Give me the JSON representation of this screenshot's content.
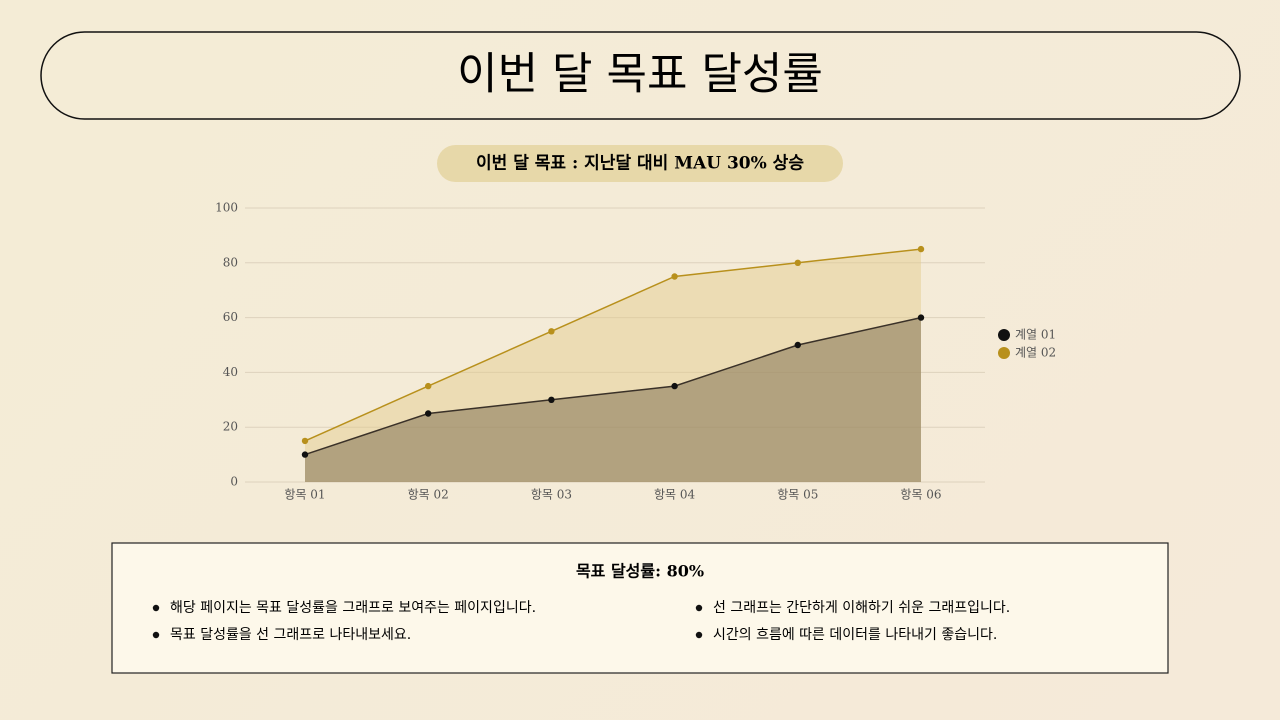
{
  "title": "이번 달 목표 달성률",
  "badge": "이번 달 목표 : 지난달 대비 MAU 30% 상승",
  "chart_data": {
    "type": "area",
    "categories": [
      "항목 01",
      "항목 02",
      "항목 03",
      "항목 04",
      "항목 05",
      "항목 06"
    ],
    "series": [
      {
        "name": "계열 01",
        "color": "#111111",
        "values": [
          10,
          25,
          30,
          35,
          50,
          60
        ]
      },
      {
        "name": "계열 02",
        "color": "#b8901c",
        "values": [
          15,
          35,
          55,
          75,
          80,
          85
        ]
      }
    ],
    "ylim": [
      0,
      100
    ],
    "yticks": [
      0,
      20,
      40,
      60,
      80,
      100
    ],
    "grid": true,
    "legend": "right"
  },
  "summary": {
    "heading": "목표 달성률: 80%",
    "bullets": [
      "해당 페이지는 목표 달성률을 그래프로 보여주는 페이지입니다.",
      "목표 달성률을 선 그래프로 나타내보세요.",
      "선 그래프는 간단하게 이해하기 쉬운 그래프입니다.",
      "시간의 흐름에 따른 데이터를 나타내기 좋습니다."
    ]
  }
}
